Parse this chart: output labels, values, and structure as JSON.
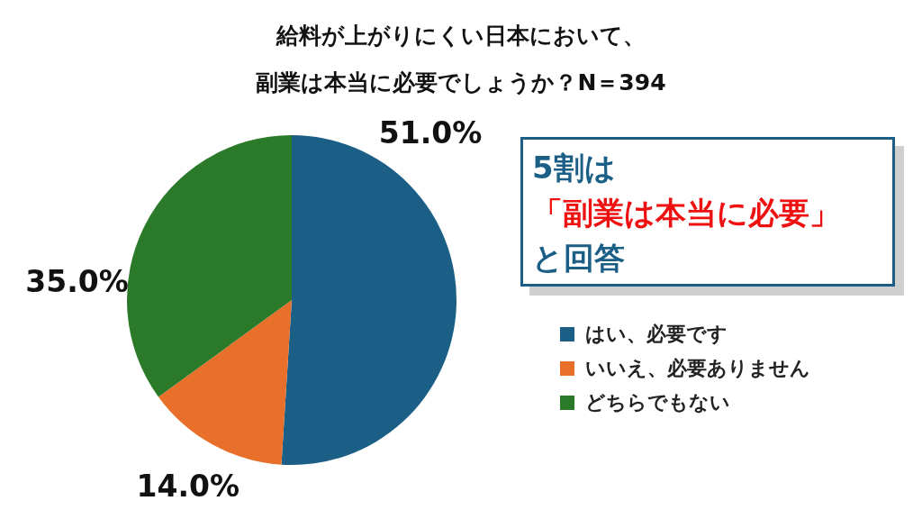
{
  "chart_data": {
    "type": "pie",
    "title": "給料が上がりにくい日本において、",
    "subtitle": "副業は本当に必要でしょうか？N＝394",
    "categories": [
      "はい、必要です",
      "いいえ、必要ありません",
      "どちらでもない"
    ],
    "values": [
      51.0,
      14.0,
      35.0
    ],
    "colors": [
      "#1b5e86",
      "#e8702a",
      "#2a7a2a"
    ],
    "value_labels": [
      "51.0%",
      "14.0%",
      "35.0%"
    ],
    "legend": "right",
    "annotations": [
      "5割は",
      "「副業は本当に必要」",
      "と回答"
    ]
  }
}
